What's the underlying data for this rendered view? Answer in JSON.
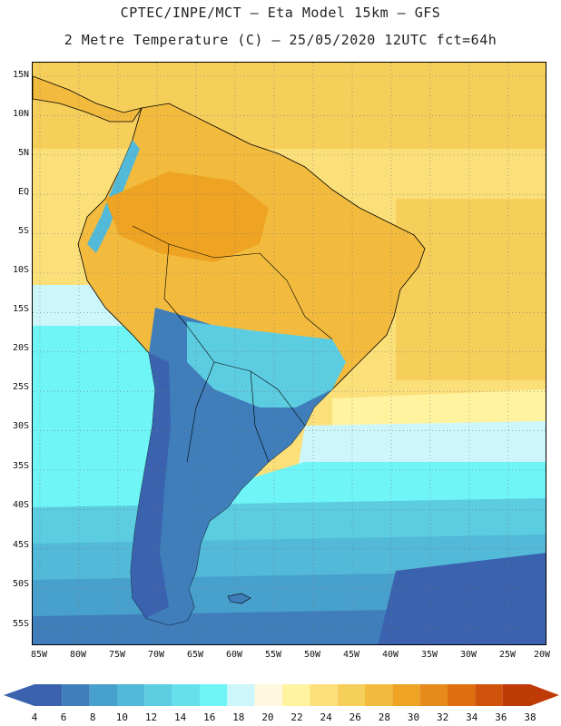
{
  "header": {
    "title_line1": "CPTEC/INPE/MCT –  Eta Model 15km – GFS",
    "title_line2": "2 Metre Temperature (C) – 25/05/2020 12UTC fct=64h"
  },
  "map": {
    "lat_labels": [
      "15N",
      "10N",
      "5N",
      "EQ",
      "5S",
      "10S",
      "15S",
      "20S",
      "25S",
      "30S",
      "35S",
      "40S",
      "45S",
      "50S",
      "55S"
    ],
    "lon_labels": [
      "85W",
      "80W",
      "75W",
      "70W",
      "65W",
      "60W",
      "55W",
      "50W",
      "45W",
      "40W",
      "35W",
      "30W",
      "25W",
      "20W"
    ],
    "grid": "dotted"
  },
  "colorbar": {
    "labels": [
      "4",
      "6",
      "8",
      "10",
      "12",
      "14",
      "16",
      "18",
      "20",
      "22",
      "24",
      "26",
      "28",
      "30",
      "32",
      "34",
      "36",
      "38"
    ],
    "colors": [
      "#3a62ae",
      "#3f7ebb",
      "#48a0cc",
      "#52b9d8",
      "#5ccce0",
      "#66e0ea",
      "#6ff5f6",
      "#cdf6fb",
      "#fff8de",
      "#fff3a0",
      "#fbe07a",
      "#f6ce5a",
      "#f2bb3e",
      "#eea322",
      "#e68a1c",
      "#df6e10",
      "#d1520a",
      "#be3a06"
    ],
    "arrow_left_color": "#3a62ae",
    "arrow_right_color": "#be3a06"
  }
}
